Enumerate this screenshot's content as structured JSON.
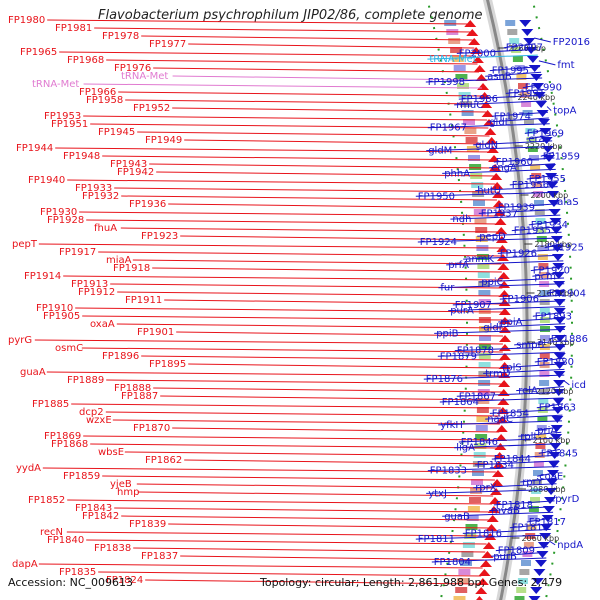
{
  "title": "Flavobacterium psychrophilum JIP02/86, complete genome",
  "footer": {
    "accession": "Accession: NC_009613",
    "summary": "Topology: circular; Length: 2,861,988 bp; Genes: 2,479"
  },
  "colors": {
    "minus_strand": "#e8141b",
    "plus_strand": "#1515c8",
    "rna": "#e07ad0",
    "trna_plus": "#2db3e6",
    "backbone": "#888888"
  },
  "scale_ticks": [
    {
      "label": "2260 kbp"
    },
    {
      "label": "2240 kbp"
    },
    {
      "label": "2220 kbp"
    },
    {
      "label": "2200 kbp"
    },
    {
      "label": "2180 kbp"
    },
    {
      "label": "2160 kbp"
    },
    {
      "label": "2140 kbp"
    },
    {
      "label": "2120 kbp"
    },
    {
      "label": "2100 kbp"
    },
    {
      "label": "2080 kbp"
    },
    {
      "label": "2060 kbp"
    }
  ],
  "left_labels": [
    "FP1980",
    "FP1981",
    "FP1978",
    "FP1977",
    "FP1965",
    "FP1968",
    "FP1976",
    "tRNA-Met",
    "tRNA-Met",
    "FP1966",
    "FP1958",
    "FP1952",
    "FP1953",
    "FP1951",
    "FP1945",
    "FP1949",
    "FP1944",
    "FP1948",
    "FP1943",
    "FP1942",
    "FP1940",
    "FP1933",
    "FP1932",
    "FP1936",
    "FP1930",
    "FP1928",
    "fhuA",
    "FP1923",
    "pepT",
    "FP1917",
    "miaA",
    "FP1918",
    "FP1914",
    "FP1913",
    "FP1912",
    "FP1911",
    "FP1910",
    "FP1905",
    "oxaA",
    "FP1901",
    "pyrG",
    "osmC",
    "FP1896",
    "FP1895",
    "guaA",
    "FP1889",
    "FP1888",
    "FP1887",
    "FP1885",
    "dcp2",
    "wzxE",
    "FP1870",
    "FP1869",
    "FP1868",
    "wbsE",
    "FP1862",
    "yydA",
    "FP1859",
    "yjeB",
    "hmp",
    "FP1852",
    "FP1843",
    "FP1842",
    "FP1839",
    "recN",
    "FP1840",
    "FP1838",
    "FP1837",
    "dapA",
    "FP1835",
    "FP1824"
  ],
  "right_labels": [
    "FP2016",
    "FP2007",
    "FP2000",
    "tRNA-Met",
    "fmt",
    "FP1995",
    "asnB",
    "FP1998",
    "FP1990",
    "FP1991",
    "FP1986",
    "rmuC",
    "topA",
    "FP1974",
    "gldL",
    "FP1967",
    "FP1969",
    "era",
    "gldN",
    "gldM",
    "FP1959",
    "FP1960",
    "engA",
    "phhA",
    "FP1955",
    "FP1956",
    "hutU",
    "FP1950",
    "alaS",
    "FP1939",
    "FP1937",
    "ndh",
    "FP1934",
    "FP1935",
    "pepD",
    "FP1924",
    "FP1925",
    "FP1926",
    "anmK",
    "prfA",
    "FP1920",
    "pcm",
    "ppiC",
    "fur",
    "FP1904",
    "FP1906",
    "FP1907",
    "purA",
    "FP1893",
    "ppiA",
    "gldI",
    "ppiB",
    "FP1886",
    "smpB",
    "FP1878",
    "FP1879",
    "FP1880",
    "rplS",
    "trmD",
    "FP1876",
    "icd",
    "relA",
    "FP1867",
    "FP1864",
    "FP1863",
    "FP1854",
    "nadC",
    "yfkH",
    "priA",
    "rplI",
    "FP1846",
    "ligA",
    "FP1845",
    "FP1844",
    "FP1834",
    "FP1833",
    "coaE",
    "rprY",
    "rprX",
    "ytxJ",
    "pyrD",
    "FP1818",
    "mvaB",
    "guaB",
    "FP1817",
    "FP1810",
    "FP1816",
    "FP1811",
    "npdA",
    "FP1809",
    "purB",
    "FP1804"
  ]
}
